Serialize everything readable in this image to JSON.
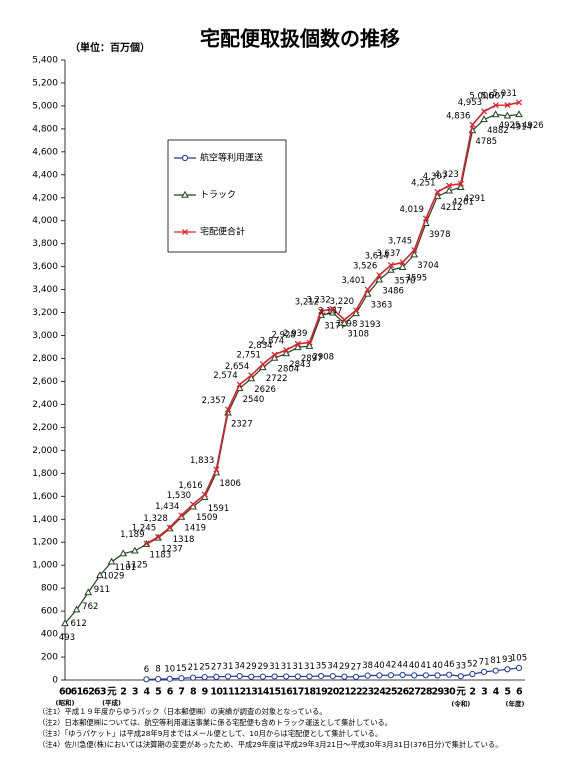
{
  "chart_data": {
    "type": "line",
    "title": "宅配便取扱個数の推移",
    "unit_label": "（単位：百万個）",
    "categories": [
      "60",
      "61",
      "62",
      "63",
      "元",
      "2",
      "3",
      "4",
      "5",
      "6",
      "7",
      "8",
      "9",
      "10",
      "11",
      "12",
      "13",
      "14",
      "15",
      "16",
      "17",
      "18",
      "19",
      "20",
      "21",
      "22",
      "23",
      "24",
      "25",
      "26",
      "27",
      "28",
      "29",
      "30",
      "元",
      "2",
      "3",
      "4",
      "5",
      "6"
    ],
    "era_labels": [
      {
        "index": 0,
        "label": "(昭和)"
      },
      {
        "index": 4,
        "label": "(平成)"
      },
      {
        "index": 34,
        "label": "(令和)"
      },
      {
        "index": 39,
        "label": "(年度)"
      }
    ],
    "ylim": [
      0,
      5400
    ],
    "yticks": [
      0,
      200,
      400,
      600,
      800,
      {
        "value": 1000,
        "label": "1,000"
      },
      {
        "value": 1200,
        "label": "1,200"
      },
      {
        "value": 1400,
        "label": "1,400"
      },
      {
        "value": 1600,
        "label": "1,600"
      },
      {
        "value": 1800,
        "label": "1,800"
      },
      {
        "value": 2000,
        "label": "2,000"
      },
      {
        "value": 2200,
        "label": "2,200"
      },
      {
        "value": 2400,
        "label": "2,400"
      },
      {
        "value": 2600,
        "label": "2,600"
      },
      {
        "value": 2800,
        "label": "2,800"
      },
      {
        "value": 3000,
        "label": "3,000"
      },
      {
        "value": 3200,
        "label": "3,200"
      },
      {
        "value": 3400,
        "label": "3,400"
      },
      {
        "value": 3600,
        "label": "3,600"
      },
      {
        "value": 3800,
        "label": "3,800"
      },
      {
        "value": 4000,
        "label": "4,000"
      },
      {
        "value": 4200,
        "label": "4,200"
      },
      {
        "value": 4400,
        "label": "4,400"
      },
      {
        "value": 4600,
        "label": "4,600"
      },
      {
        "value": 4800,
        "label": "4,800"
      },
      {
        "value": 5000,
        "label": "5,000"
      },
      {
        "value": 5200,
        "label": "5,200"
      },
      {
        "value": 5400,
        "label": "5,400"
      }
    ],
    "grid": false,
    "series": [
      {
        "name": "航空等利用運送",
        "color": "#1f3c9c",
        "marker": "circle",
        "values": [
          null,
          null,
          null,
          null,
          null,
          null,
          null,
          6,
          8,
          10,
          15,
          21,
          25,
          27,
          31,
          34,
          29,
          29,
          31,
          31,
          31,
          31,
          35,
          34,
          29,
          27,
          38,
          40,
          42,
          44,
          40,
          41,
          40,
          46,
          33,
          52,
          71,
          81,
          93,
          105
        ]
      },
      {
        "name": "トラック",
        "color": "#1e4620",
        "marker": "triangle",
        "values": [
          493,
          612,
          762,
          911,
          1029,
          1101,
          1125,
          1183,
          1237,
          1318,
          1419,
          1509,
          1591,
          1806,
          2327,
          2540,
          2626,
          2722,
          2804,
          2843,
          2897,
          2908,
          3177,
          3198,
          3108,
          3193,
          3363,
          3486,
          3570,
          3595,
          3704,
          3978,
          4212,
          4261,
          4291,
          4785,
          4882,
          4925,
          4914,
          4926
        ]
      },
      {
        "name": "宅配便合計",
        "color": "#e0202a",
        "marker": "x",
        "values": [
          null,
          null,
          null,
          null,
          null,
          null,
          null,
          1189,
          1245,
          1328,
          1434,
          1530,
          1616,
          1833,
          2357,
          2574,
          2654,
          2751,
          2834,
          2874,
          2928,
          2939,
          3212,
          3232,
          3137,
          3220,
          3401,
          3526,
          3614,
          3637,
          3745,
          4019,
          4251,
          4307,
          4323,
          4836,
          4953,
          5006,
          5007,
          5031
        ],
        "value_labels": [
          null,
          null,
          null,
          null,
          null,
          null,
          null,
          "1,189",
          "1,245",
          "1,328",
          "1,434",
          "1,530",
          "1,616",
          "1,833",
          "2,357",
          "2,574",
          "2,654",
          "2,751",
          "2,834",
          "2,874",
          "2,928",
          "2,939",
          "3,212",
          "3,232",
          "3,137",
          "3,220",
          "3,401",
          "3,526",
          "3,614",
          "3,637",
          "3,745",
          "4,019",
          "4,251",
          "4,307",
          "4,323",
          "4,836",
          "4,953",
          "5,006",
          "5,007",
          "5,031"
        ]
      }
    ],
    "notes": [
      "（注1）平成１９年度からゆうパック（日本郵便㈱）の実績が調査の対象となっている。",
      "（注2）日本郵便㈱については、航空等利用運送事業に係る宅配便も含めトラック運送として集計している。",
      "（注3）「ゆうパケット」は平成28年9月まではメール便として、10月からは宅配便として集計している。",
      "（注4）佐川急便(株)においては決算期の変更があったため、平成29年度は平成29年3月21日～平成30年3月31日(376日分)で集計している。"
    ]
  }
}
